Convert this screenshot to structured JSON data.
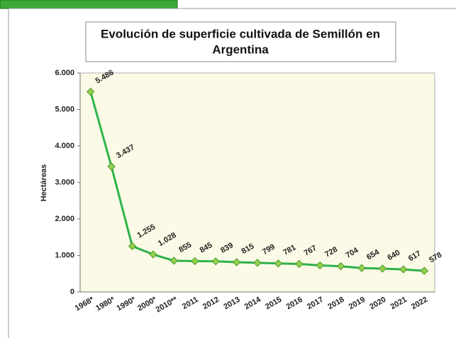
{
  "chart_data": {
    "type": "line",
    "title": [
      "Evolución de superficie cultivada de Semillón en",
      "Argentina"
    ],
    "y_label": "Hectáreas",
    "categories": [
      "1968*",
      "1980*",
      "1990*",
      "2000*",
      "2010**",
      "2011",
      "2012",
      "2013",
      "2014",
      "2015",
      "2016",
      "2017",
      "2018",
      "2019",
      "2020",
      "2021",
      "2022"
    ],
    "values": [
      5486,
      3437,
      1255,
      1028,
      855,
      845,
      839,
      815,
      799,
      781,
      767,
      728,
      704,
      654,
      640,
      617,
      578
    ],
    "value_labels": [
      "5.486",
      "3.437",
      "1.255",
      "1.028",
      "855",
      "845",
      "839",
      "815",
      "799",
      "781",
      "767",
      "728",
      "704",
      "654",
      "640",
      "617",
      "578"
    ],
    "color": "#2db34a",
    "marker_color": "#92d050",
    "ylim": [
      0,
      6000
    ],
    "yticks": [
      0,
      {
        "value": 1000,
        "label": "1.000"
      },
      {
        "value": 2000,
        "label": "2.000"
      },
      {
        "value": 3000,
        "label": "3.000"
      },
      {
        "value": 4000,
        "label": "4.000"
      },
      {
        "value": 5000,
        "label": "5.000"
      },
      {
        "value": 6000,
        "label": "6.000"
      }
    ],
    "grid": false
  }
}
